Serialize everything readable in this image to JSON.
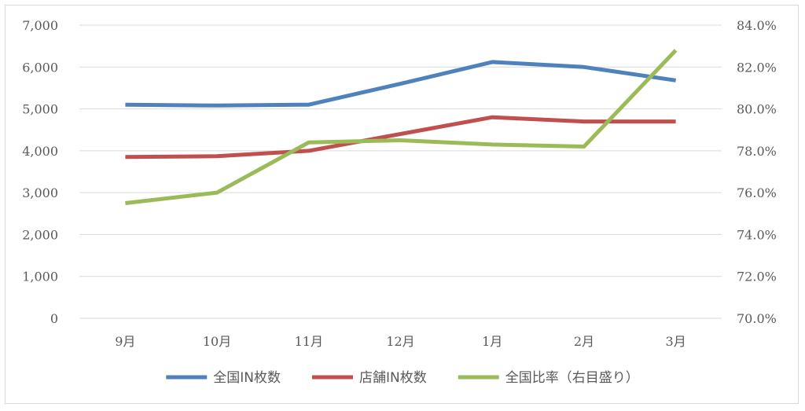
{
  "chart_data": {
    "type": "line",
    "categories": [
      "9月",
      "10月",
      "11月",
      "12月",
      "1月",
      "2月",
      "3月"
    ],
    "series": [
      {
        "name": "全国IN枚数",
        "axis": "left",
        "color": "#4f81bd",
        "values": [
          5100,
          5080,
          5100,
          5600,
          6120,
          6000,
          5680
        ]
      },
      {
        "name": "店舗IN枚数",
        "axis": "left",
        "color": "#c0504d",
        "values": [
          3850,
          3870,
          4000,
          4400,
          4800,
          4700,
          4700
        ]
      },
      {
        "name": "全国比率（右目盛り）",
        "axis": "right",
        "color": "#9bbb59",
        "values": [
          75.5,
          76.0,
          78.4,
          78.5,
          78.3,
          78.2,
          82.8
        ]
      }
    ],
    "y_left": {
      "min": 0,
      "max": 7000,
      "step": 1000,
      "tick_labels": [
        "0",
        "1,000",
        "2,000",
        "3,000",
        "4,000",
        "5,000",
        "6,000",
        "7,000"
      ]
    },
    "y_right": {
      "min": 70,
      "max": 84,
      "step": 2,
      "tick_labels": [
        "70.0%",
        "72.0%",
        "74.0%",
        "76.0%",
        "78.0%",
        "80.0%",
        "82.0%",
        "84.0%"
      ]
    },
    "grid": true,
    "legend_position": "bottom",
    "gridline_color": "#d9d9d9"
  }
}
